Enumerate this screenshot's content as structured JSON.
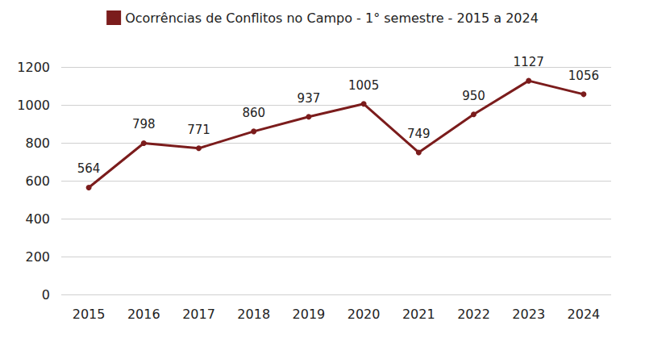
{
  "chart_data": {
    "type": "line",
    "categories": [
      "2015",
      "2016",
      "2017",
      "2018",
      "2019",
      "2020",
      "2021",
      "2022",
      "2023",
      "2024"
    ],
    "series": [
      {
        "name": "Ocorrências de Conflitos no Campo - 1° semestre - 2015 a 2024",
        "color": "#7b1c1c",
        "values": [
          564,
          798,
          771,
          860,
          937,
          1005,
          749,
          950,
          1127,
          1056
        ]
      }
    ],
    "ylim": [
      0,
      1200
    ],
    "yticks": [
      0,
      200,
      400,
      600,
      800,
      1000,
      1200
    ],
    "grid": true,
    "legend": "top",
    "data_labels": true,
    "marker": "circle"
  }
}
